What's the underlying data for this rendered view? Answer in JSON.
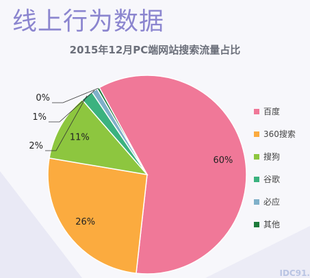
{
  "page": {
    "title": "线上行为数据",
    "watermark": "IDC91."
  },
  "chart_data": {
    "type": "pie",
    "title": "2015年12月PC端网站搜索流量占比",
    "legend_position": "right",
    "categories": [
      "百度",
      "360搜索",
      "搜狗",
      "谷歌",
      "必应",
      "其他"
    ],
    "values": [
      60,
      26,
      11,
      2,
      1,
      0.4
    ],
    "labels": [
      "60%",
      "26%",
      "11%",
      "2%",
      "1%",
      "0%"
    ],
    "colors": [
      "#f07898",
      "#fbab3f",
      "#8dc63f",
      "#3bb27f",
      "#7fb0c9",
      "#1d7a3a"
    ]
  }
}
